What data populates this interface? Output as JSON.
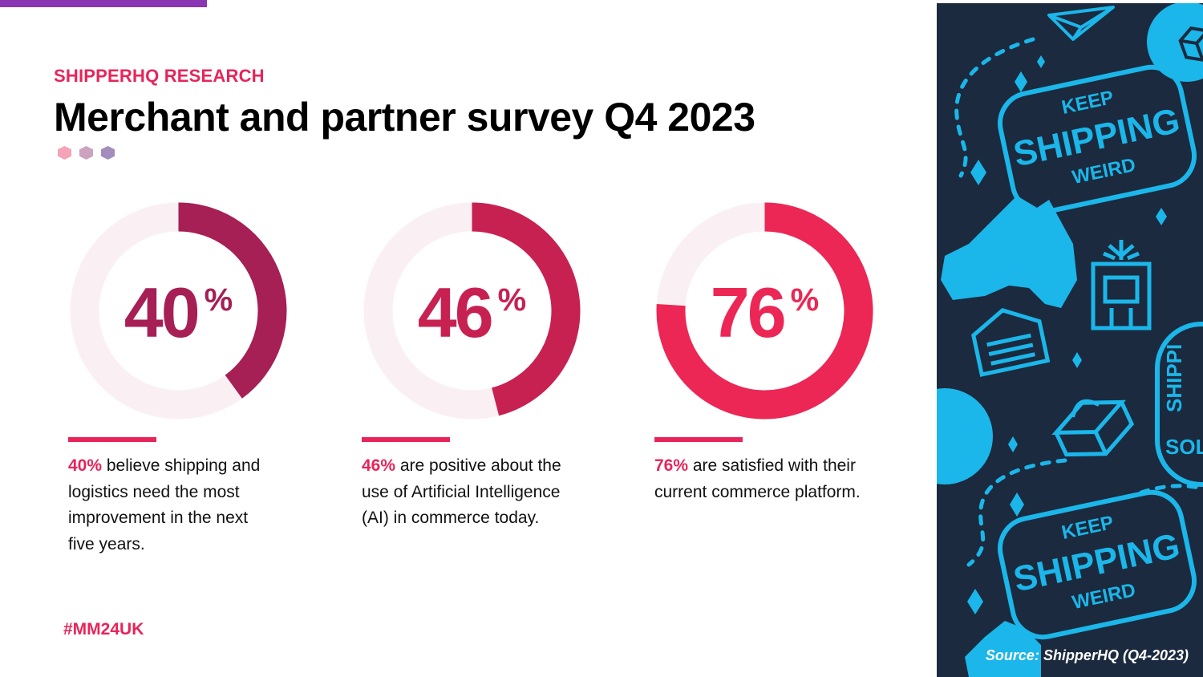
{
  "header": {
    "eyebrow": "SHIPPERHQ RESEARCH",
    "title": "Merchant and partner survey Q4 2023"
  },
  "chart_data": {
    "type": "donut",
    "max": 100,
    "items": [
      {
        "value": 40,
        "value_text": "40",
        "unit": "%",
        "highlight": "40%",
        "text": " believe shipping and logistics need the most improvement in the next five years.",
        "color": "#a61f55"
      },
      {
        "value": 46,
        "value_text": "46",
        "unit": "%",
        "highlight": "46%",
        "text": " are positive about the use of Artificial Intelligence (AI) in commerce today.",
        "color": "#c72152"
      },
      {
        "value": 76,
        "value_text": "76",
        "unit": "%",
        "highlight": "76%",
        "text": " are satisfied with their current commerce platform.",
        "color": "#ec2755"
      }
    ]
  },
  "footer": {
    "hashtag": "#MM24UK",
    "source": "Source: ShipperHQ (Q4-2023)"
  },
  "art": {
    "badge_top": {
      "line1": "KEEP",
      "line2": "SHIPPING",
      "line3": "WEIRD"
    },
    "badge_bottom": {
      "line1": "KEEP",
      "line2": "SHIPPING",
      "line3": "WEIRD"
    },
    "badge_side": {
      "line1": "SHIPPI",
      "line2": "SOL"
    }
  },
  "colors": {
    "accent": "#e8245a",
    "top_bar": "#8a35b3",
    "track": "#faf0f3",
    "panel_bg": "#1b2a3e",
    "pattern": "#1bb6ea",
    "hex_dots": [
      "#f4a3b8",
      "#cda2bf",
      "#a28dbd"
    ]
  }
}
